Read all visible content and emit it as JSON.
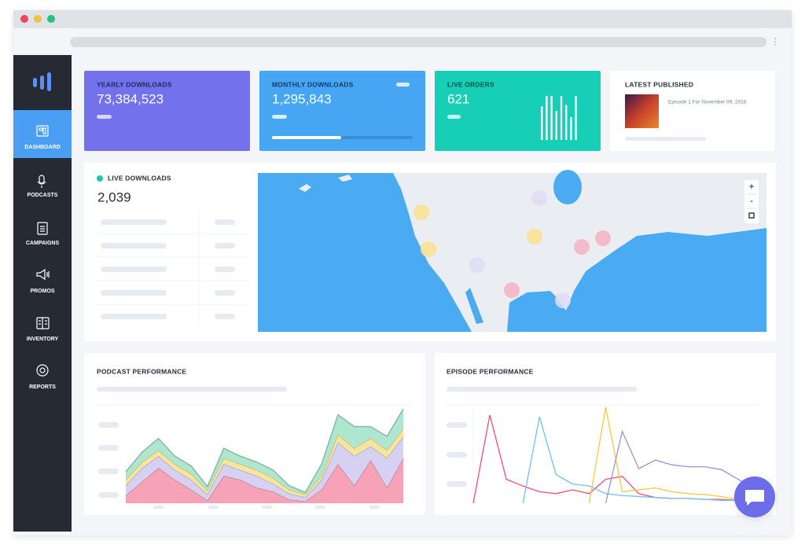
{
  "sidebar": {
    "items": [
      "DASHBOARD",
      "PODCASTS",
      "CAMPAIGNS",
      "PROMOS",
      "INVENTORY",
      "REPORTS"
    ]
  },
  "cards": [
    {
      "title": "YEARLY DOWNLOADS",
      "value": "73,384,523"
    },
    {
      "title": "MONTHLY DOWNLOADS",
      "value": "1,295,843"
    },
    {
      "title": "LIVE ORDERS",
      "value": "621",
      "bars": {
        "type": "bar",
        "values": [
          44,
          58,
          58,
          38,
          58,
          46,
          30,
          58
        ],
        "ylim": [
          0,
          60
        ]
      }
    },
    {
      "title": "LATEST PUBLISHED",
      "episode": "Episode 1 For November 09, 2018"
    }
  ],
  "live_downloads": {
    "title": "LIVE DOWNLOADS",
    "value": "2,039"
  },
  "map": {
    "zoom_in": "+",
    "zoom_out": "-"
  },
  "chart_data": [
    {
      "type": "area",
      "title": "PODCAST PERFORMANCE",
      "ylim": [
        0,
        100
      ],
      "series": [
        {
          "color": "#f7a3b7",
          "values": [
            8,
            22,
            36,
            24,
            14,
            3,
            28,
            24,
            16,
            12,
            4,
            2,
            14,
            40,
            18,
            44,
            16,
            46
          ]
        },
        {
          "color": "#d6d1f3",
          "values": [
            10,
            14,
            12,
            10,
            10,
            6,
            12,
            10,
            12,
            8,
            6,
            4,
            10,
            22,
            30,
            14,
            30,
            22
          ]
        },
        {
          "color": "#f8e59c",
          "values": [
            6,
            6,
            6,
            6,
            6,
            4,
            6,
            6,
            6,
            6,
            4,
            3,
            4,
            8,
            8,
            8,
            8,
            8
          ]
        },
        {
          "color": "#aee6cf",
          "values": [
            8,
            10,
            12,
            8,
            8,
            4,
            10,
            8,
            8,
            8,
            4,
            2,
            12,
            20,
            22,
            12,
            14,
            20
          ]
        }
      ]
    },
    {
      "type": "line",
      "title": "EPISODE PERFORMANCE",
      "ylim": [
        0,
        100
      ],
      "series": [
        {
          "color": "#ee4d7a",
          "values": [
            0,
            92,
            25,
            18,
            12,
            10,
            14,
            10,
            25,
            28,
            10,
            6,
            5,
            5,
            4,
            4,
            3,
            2
          ]
        },
        {
          "color": "#6fc0ee",
          "values": [
            null,
            null,
            null,
            0,
            90,
            30,
            20,
            18,
            10,
            8,
            7,
            6,
            5,
            5,
            4,
            3,
            3,
            2
          ]
        },
        {
          "color": "#f5c93c",
          "values": [
            null,
            null,
            null,
            null,
            null,
            null,
            null,
            0,
            100,
            12,
            14,
            16,
            12,
            10,
            9,
            7,
            4,
            2
          ]
        },
        {
          "color": "#9b8fe0",
          "values": [
            null,
            null,
            null,
            null,
            null,
            null,
            null,
            null,
            0,
            75,
            36,
            45,
            40,
            38,
            38,
            35,
            25,
            15
          ]
        }
      ]
    }
  ]
}
